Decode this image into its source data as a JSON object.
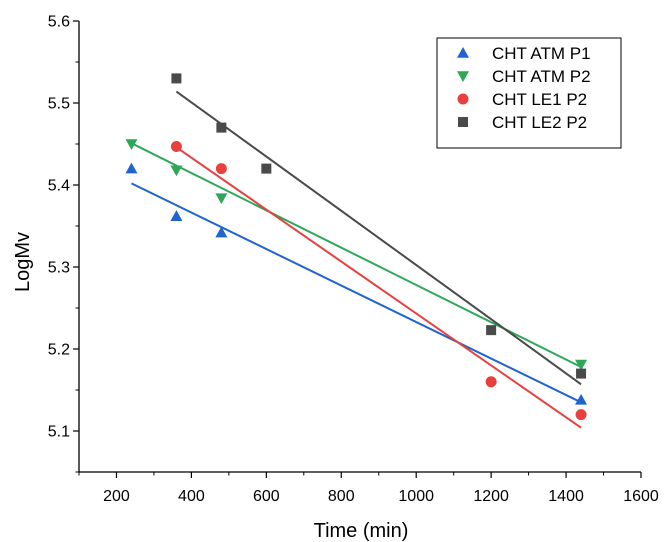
{
  "chart_data": {
    "type": "scatter",
    "xlabel": "Time (min)",
    "ylabel": "LogMv",
    "xlim": [
      100,
      1600
    ],
    "ylim": [
      5.05,
      5.6
    ],
    "xticks": [
      200,
      400,
      600,
      800,
      1000,
      1200,
      1400,
      1600
    ],
    "yticks": [
      5.1,
      5.2,
      5.3,
      5.4,
      5.5,
      5.6
    ],
    "xtick_labels": [
      "200",
      "400",
      "600",
      "800",
      "1000",
      "1200",
      "1400",
      "1600"
    ],
    "ytick_labels": [
      "5.1",
      "5.2",
      "5.3",
      "5.4",
      "5.5",
      "5.6"
    ],
    "grid": false,
    "legend_position": "top-right",
    "series": [
      {
        "name": "CHT ATM P1",
        "marker": "triangle-up",
        "color": "#1f64d0",
        "x": [
          240,
          360,
          480,
          1440
        ],
        "y": [
          5.42,
          5.362,
          5.342,
          5.138
        ],
        "fit": [
          [
            240,
            5.402
          ],
          [
            1440,
            5.135
          ]
        ]
      },
      {
        "name": "CHT ATM P2",
        "marker": "triangle-down",
        "color": "#2ca856",
        "x": [
          240,
          360,
          480,
          1440
        ],
        "y": [
          5.45,
          5.418,
          5.384,
          5.181
        ],
        "fit": [
          [
            240,
            5.451
          ],
          [
            1440,
            5.178
          ]
        ]
      },
      {
        "name": "CHT LE1 P2",
        "marker": "circle",
        "color": "#e8403f",
        "x": [
          360,
          480,
          1200,
          1440
        ],
        "y": [
          5.447,
          5.42,
          5.16,
          5.12
        ],
        "fit": [
          [
            360,
            5.446
          ],
          [
            1440,
            5.104
          ]
        ]
      },
      {
        "name": "CHT LE2 P2",
        "marker": "square",
        "color": "#4a4a4a",
        "x": [
          360,
          480,
          600,
          1200,
          1440
        ],
        "y": [
          5.53,
          5.47,
          5.42,
          5.223,
          5.17
        ],
        "fit": [
          [
            360,
            5.514
          ],
          [
            1440,
            5.157
          ]
        ]
      }
    ]
  }
}
